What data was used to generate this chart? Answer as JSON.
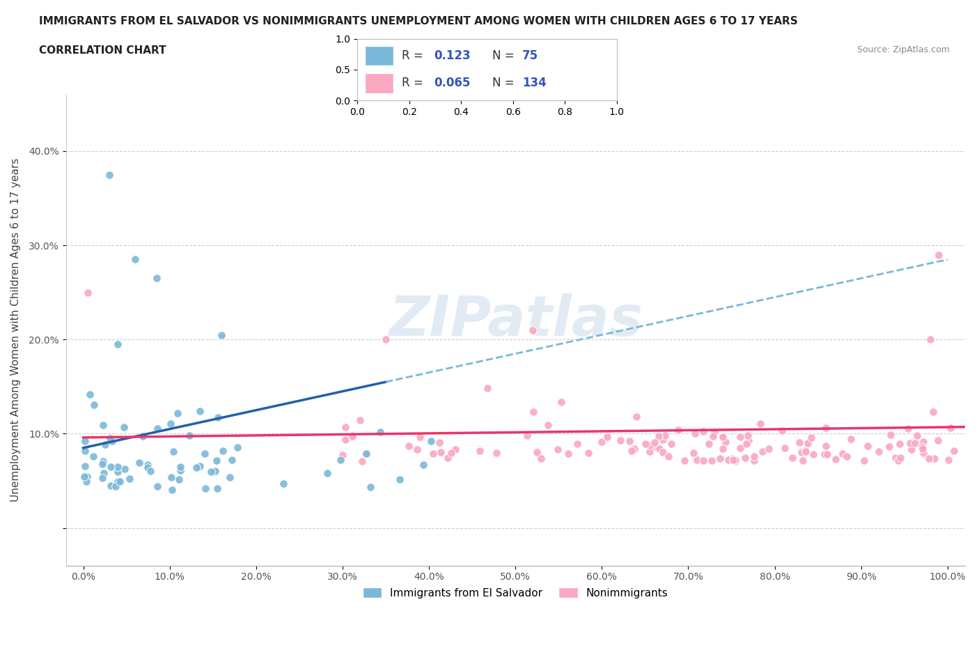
{
  "title": "IMMIGRANTS FROM EL SALVADOR VS NONIMMIGRANTS UNEMPLOYMENT AMONG WOMEN WITH CHILDREN AGES 6 TO 17 YEARS",
  "subtitle": "CORRELATION CHART",
  "source": "Source: ZipAtlas.com",
  "ylabel": "Unemployment Among Women with Children Ages 6 to 17 years",
  "xlim": [
    -0.02,
    1.02
  ],
  "ylim": [
    -0.04,
    0.46
  ],
  "xticks": [
    0.0,
    0.1,
    0.2,
    0.3,
    0.4,
    0.5,
    0.6,
    0.7,
    0.8,
    0.9,
    1.0
  ],
  "xticklabels": [
    "0.0%",
    "10.0%",
    "20.0%",
    "30.0%",
    "40.0%",
    "50.0%",
    "60.0%",
    "70.0%",
    "80.0%",
    "90.0%",
    "100.0%"
  ],
  "yticks": [
    0.0,
    0.1,
    0.2,
    0.3,
    0.4
  ],
  "yticklabels": [
    "",
    "10.0%",
    "20.0%",
    "30.0%",
    "40.0%"
  ],
  "r_blue": 0.123,
  "n_blue": 75,
  "r_pink": 0.065,
  "n_pink": 134,
  "blue_color": "#7ab8d9",
  "pink_color": "#f9a8c0",
  "blue_line_color": "#2060a8",
  "pink_line_color": "#e8366a",
  "blue_line_dashed_color": "#7ab8d9",
  "legend_label_blue": "Immigrants from El Salvador",
  "legend_label_pink": "Nonimmigrants",
  "watermark": "ZIPatlas",
  "background_color": "#ffffff"
}
